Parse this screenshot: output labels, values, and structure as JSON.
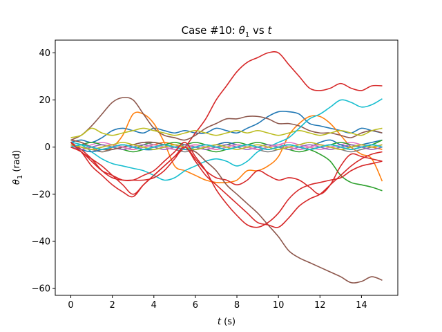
{
  "chart_data": {
    "type": "line",
    "title_parts": [
      "Case #10: ",
      "θ",
      "1",
      " vs ",
      "t"
    ],
    "xlabel_parts": [
      "t",
      " (s)"
    ],
    "ylabel_parts": [
      "θ",
      "1",
      " (rad)"
    ],
    "xlim": [
      -0.75,
      15.75
    ],
    "ylim": [
      -62.9,
      45.4
    ],
    "xticks": [
      0,
      2,
      4,
      6,
      8,
      10,
      12,
      14
    ],
    "yticks": [
      -60,
      -40,
      -20,
      0,
      20,
      40
    ],
    "x": [
      0,
      0.5,
      1,
      1.5,
      2,
      2.5,
      3,
      3.5,
      4,
      4.5,
      5,
      5.5,
      6,
      6.5,
      7,
      7.5,
      8,
      8.5,
      9,
      9.5,
      10,
      10.5,
      11,
      11.5,
      12,
      12.5,
      13,
      13.5,
      14,
      14.5,
      15
    ],
    "series": [
      {
        "color": "#1f77b4",
        "values": [
          2,
          3,
          2,
          4,
          7,
          8,
          7,
          6,
          8,
          7,
          6,
          7,
          6,
          6,
          8,
          7,
          6,
          8,
          10,
          13,
          15,
          15,
          14,
          10,
          9,
          8,
          7,
          6,
          8,
          7,
          6
        ]
      },
      {
        "color": "#ff7f0e",
        "values": [
          3,
          2,
          0,
          -2,
          0,
          5,
          14,
          14,
          10,
          2,
          -8,
          -10,
          -12,
          -14,
          -15,
          -15,
          -14,
          -10,
          -10,
          -8,
          -4,
          5,
          10,
          13,
          13,
          10,
          5,
          0,
          -3,
          -5,
          -14.5
        ]
      },
      {
        "color": "#2ca02c",
        "values": [
          1,
          0,
          -1,
          0,
          1,
          0,
          -1,
          1,
          2,
          1,
          0,
          1,
          2,
          1,
          0,
          1,
          2,
          1,
          0,
          -1,
          0,
          1,
          0,
          -1,
          -3,
          -6,
          -12,
          -15,
          -16,
          -17,
          -18.5
        ]
      },
      {
        "color": "#d62728",
        "values": [
          2,
          -2,
          -8,
          -12,
          -16,
          -19,
          -21,
          -16,
          -12,
          -8,
          -4,
          0,
          6,
          12,
          20,
          26,
          32,
          36,
          38,
          40,
          40,
          35,
          30,
          25,
          24,
          25,
          27,
          25,
          24,
          26,
          26
        ]
      },
      {
        "color": "#9467bd",
        "values": [
          0,
          1,
          0,
          -1,
          0,
          1,
          0,
          -1,
          0,
          1,
          0,
          -1,
          0,
          1,
          0,
          -1,
          0,
          1,
          0,
          -1,
          0,
          1,
          0,
          -1,
          0,
          1,
          0,
          -1,
          0,
          1,
          0
        ]
      },
      {
        "color": "#8c564b",
        "values": [
          3,
          5,
          9,
          14,
          19,
          21,
          20,
          14,
          8,
          5,
          4,
          3,
          5,
          8,
          10,
          12,
          12,
          13,
          13,
          12,
          10,
          10,
          9,
          7,
          6,
          6,
          5,
          4,
          6,
          7,
          6
        ]
      },
      {
        "color": "#e377c2",
        "values": [
          0,
          -1,
          1,
          2,
          1,
          0,
          -1,
          0,
          1,
          2,
          1,
          0,
          -1,
          0,
          1,
          2,
          1,
          0,
          -1,
          0,
          1,
          2,
          1,
          0,
          -1,
          0,
          1,
          2,
          1,
          0,
          1
        ]
      },
      {
        "color": "#7f7f7f",
        "values": [
          1,
          0,
          -1,
          -2,
          -1,
          0,
          1,
          2,
          1,
          0,
          -1,
          -2,
          -1,
          0,
          1,
          2,
          1,
          0,
          -1,
          -2,
          -1,
          0,
          1,
          2,
          1,
          0,
          -1,
          -2,
          -1,
          0,
          1
        ]
      },
      {
        "color": "#bcbd22",
        "values": [
          4,
          5,
          8,
          6,
          5,
          6,
          7,
          8,
          7,
          6,
          5,
          6,
          7,
          6,
          5,
          6,
          7,
          6,
          7,
          6,
          5,
          6,
          7,
          6,
          5,
          6,
          7,
          6,
          5,
          7,
          8
        ]
      },
      {
        "color": "#17becf",
        "values": [
          2,
          1,
          -2,
          -5,
          -7,
          -8,
          -9,
          -10,
          -12,
          -14,
          -13,
          -10,
          -8,
          -6,
          -5,
          -6,
          -8,
          -6,
          -2,
          0,
          2,
          4,
          8,
          12,
          14,
          17,
          20,
          19,
          17,
          18,
          20.5
        ]
      },
      {
        "color": "#1f77b4",
        "values": [
          1,
          -1,
          -2,
          -1,
          0,
          1,
          0,
          -1,
          -1,
          0,
          1,
          0,
          -1,
          0,
          1,
          2,
          1,
          0,
          -1,
          0,
          1,
          0,
          -1,
          0,
          2,
          3,
          1,
          0,
          1,
          2,
          3
        ]
      },
      {
        "color": "#ff7f0e",
        "values": [
          1,
          0,
          -1,
          0,
          1,
          0,
          -1,
          0,
          1,
          2,
          1,
          0,
          1,
          0,
          -1,
          0,
          1,
          0,
          -1,
          0,
          1,
          0,
          -1,
          0,
          1,
          0,
          -1,
          0,
          1,
          0,
          -1
        ]
      },
      {
        "color": "#2ca02c",
        "values": [
          0,
          1,
          2,
          1,
          0,
          -1,
          -2,
          -1,
          0,
          1,
          2,
          1,
          0,
          -1,
          -2,
          -1,
          0,
          1,
          2,
          1,
          0,
          -1,
          -2,
          -1,
          0,
          1,
          2,
          1,
          0,
          1,
          3
        ]
      },
      {
        "color": "#d62728",
        "values": [
          2,
          -1,
          -5,
          -10,
          -13,
          -14,
          -14,
          -14,
          -13,
          -10,
          -5,
          0,
          -5,
          -10,
          -13,
          -14,
          -16,
          -14,
          -10,
          -12,
          -14,
          -13,
          -14,
          -17,
          -20,
          -16,
          -8,
          -3,
          -4,
          -5,
          -6
        ]
      },
      {
        "color": "#9467bd",
        "values": [
          0,
          -1,
          0,
          1,
          0,
          -1,
          0,
          1,
          0,
          -1,
          0,
          1,
          0,
          -1,
          0,
          1,
          0,
          -1,
          0,
          1,
          0,
          -1,
          0,
          1,
          0,
          -1,
          0,
          1,
          0,
          -1,
          0
        ]
      },
      {
        "color": "#8c564b",
        "values": [
          3,
          2,
          0,
          -1,
          -1,
          0,
          1,
          2,
          2,
          1,
          0,
          -1,
          -2,
          -6,
          -10,
          -16,
          -20,
          -24,
          -28,
          -33,
          -38,
          -44,
          -47,
          -49,
          -51,
          -53,
          -55,
          -57.5,
          -57,
          -55,
          -56.5
        ]
      },
      {
        "color": "#e377c2",
        "values": [
          1,
          0,
          -1,
          0,
          1,
          0,
          -1,
          0,
          1,
          0,
          -1,
          0,
          1,
          0,
          -1,
          0,
          1,
          0,
          -1,
          0,
          1,
          0,
          -1,
          0,
          1,
          0,
          -1,
          0,
          1,
          0,
          1
        ]
      },
      {
        "color": "#7f7f7f",
        "values": [
          0,
          1,
          0,
          -1,
          0,
          1,
          0,
          -1,
          0,
          1,
          0,
          -1,
          0,
          1,
          0,
          -1,
          0,
          1,
          0,
          -1,
          0,
          1,
          0,
          -1,
          0,
          1,
          0,
          -1,
          0,
          1,
          0
        ]
      },
      {
        "color": "#bcbd22",
        "values": [
          1,
          0,
          -1,
          0,
          1,
          2,
          1,
          0,
          -1,
          0,
          1,
          0,
          -1,
          0,
          1,
          0,
          -1,
          0,
          1,
          0,
          -1,
          0,
          1,
          2,
          1,
          0,
          -1,
          0,
          1,
          0,
          1
        ]
      },
      {
        "color": "#17becf",
        "values": [
          0,
          1,
          0,
          -1,
          0,
          1,
          0,
          -1,
          0,
          1,
          0,
          -1,
          0,
          1,
          0,
          -1,
          0,
          1,
          0,
          -1,
          0,
          1,
          0,
          -1,
          0,
          1,
          0,
          -1,
          0,
          1,
          0
        ]
      },
      {
        "color": "#d62728",
        "values": [
          2,
          -2,
          -5,
          -8,
          -12,
          -16,
          -20,
          -16,
          -12,
          -8,
          -4,
          0,
          -6,
          -12,
          -16,
          -20,
          -24,
          -28,
          -32,
          -33,
          -34,
          -30,
          -25,
          -22,
          -20,
          -16,
          -12,
          -8,
          -5,
          -3,
          -2
        ]
      },
      {
        "color": "#d62728",
        "values": [
          0,
          -2,
          -6,
          -10,
          -12,
          -14,
          -14,
          -12,
          -10,
          -6,
          -2,
          2,
          -4,
          -10,
          -18,
          -24,
          -29,
          -33,
          -34,
          -32,
          -28,
          -22,
          -18,
          -16,
          -15,
          -14,
          -13,
          -10,
          -8,
          -7,
          -6
        ]
      }
    ]
  }
}
